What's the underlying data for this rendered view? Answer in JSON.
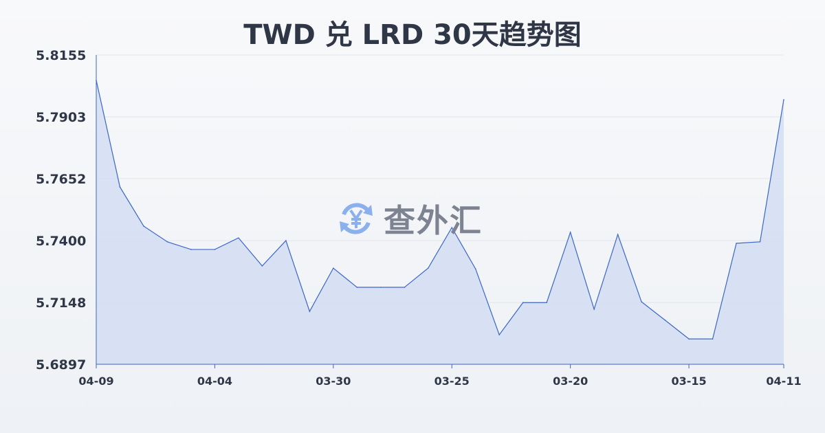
{
  "chart_data": {
    "type": "area",
    "title": "TWD 兑 LRD 30天趋势图",
    "xlabel": "",
    "ylabel": "",
    "ylim": [
      5.6897,
      5.8155
    ],
    "y_ticks": [
      "5.8155",
      "5.7903",
      "5.7652",
      "5.7400",
      "5.7148",
      "5.6897"
    ],
    "x_ticks": [
      {
        "index": 0,
        "label": "04-09"
      },
      {
        "index": 5,
        "label": "04-04"
      },
      {
        "index": 10,
        "label": "03-30"
      },
      {
        "index": 15,
        "label": "03-25"
      },
      {
        "index": 20,
        "label": "03-20"
      },
      {
        "index": 25,
        "label": "03-15"
      },
      {
        "index": 29,
        "label": "04-11"
      }
    ],
    "values": [
      5.8052,
      5.7618,
      5.7459,
      5.7395,
      5.7364,
      5.7364,
      5.7411,
      5.7297,
      5.74,
      5.7112,
      5.7288,
      5.721,
      5.721,
      5.721,
      5.7288,
      5.7453,
      5.7285,
      5.7017,
      5.7148,
      5.7148,
      5.7434,
      5.7121,
      5.7425,
      5.7151,
      5.7076,
      5.7,
      5.7,
      5.7389,
      5.7395,
      5.7973
    ],
    "grid": true,
    "line_color": "#3a66c9",
    "fill_color": "#d3ddf3"
  },
  "watermark": {
    "text": "查外汇",
    "icon": "yen-exchange-icon",
    "color": "#8ab0ee"
  }
}
